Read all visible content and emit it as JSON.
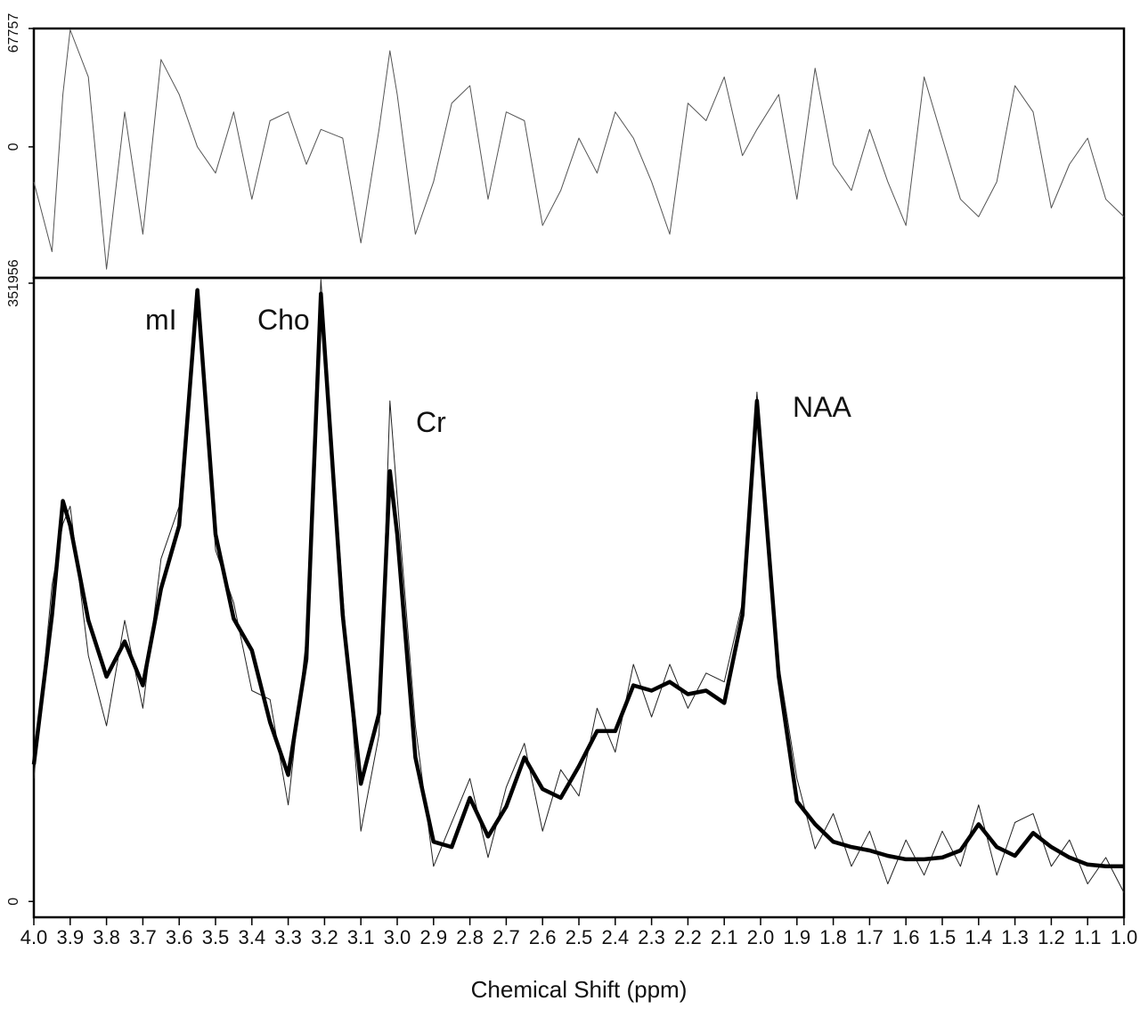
{
  "chart_data": [
    {
      "type": "line",
      "x": [
        4.0,
        3.95,
        3.92,
        3.9,
        3.85,
        3.8,
        3.75,
        3.7,
        3.65,
        3.6,
        3.55,
        3.5,
        3.45,
        3.4,
        3.35,
        3.3,
        3.25,
        3.21,
        3.15,
        3.1,
        3.05,
        3.02,
        3.0,
        2.95,
        2.9,
        2.85,
        2.8,
        2.75,
        2.7,
        2.65,
        2.6,
        2.55,
        2.5,
        2.45,
        2.4,
        2.35,
        2.3,
        2.25,
        2.2,
        2.15,
        2.1,
        2.05,
        2.01,
        1.95,
        1.9,
        1.85,
        1.8,
        1.75,
        1.7,
        1.65,
        1.6,
        1.55,
        1.5,
        1.45,
        1.4,
        1.35,
        1.3,
        1.25,
        1.2,
        1.15,
        1.1,
        1.05,
        1.0
      ],
      "series": [
        {
          "color": "#555555",
          "width": 1,
          "values": [
            -20000,
            -60000,
            30000,
            67000,
            40000,
            -70000,
            20000,
            -50000,
            50000,
            30000,
            0,
            -15000,
            20000,
            -30000,
            15000,
            20000,
            -10000,
            10000,
            5000,
            -55000,
            10000,
            55000,
            30000,
            -50000,
            -20000,
            25000,
            35000,
            -30000,
            20000,
            15000,
            -45000,
            -25000,
            5000,
            -15000,
            20000,
            5000,
            -20000,
            -50000,
            25000,
            15000,
            40000,
            -5000,
            10000,
            30000,
            -30000,
            45000,
            -10000,
            -25000,
            10000,
            -20000,
            -45000,
            40000,
            5000,
            -30000,
            -40000,
            -20000,
            35000,
            20000,
            -35000,
            -10000,
            5000,
            -30000,
            -40000
          ]
        }
      ],
      "xlim": [
        4,
        1
      ],
      "ylim": [
        -75000,
        67757
      ],
      "yticks": [
        0,
        67757
      ]
    },
    {
      "type": "line",
      "x": [
        4.0,
        3.95,
        3.92,
        3.9,
        3.85,
        3.8,
        3.75,
        3.7,
        3.65,
        3.6,
        3.55,
        3.5,
        3.45,
        3.4,
        3.35,
        3.3,
        3.25,
        3.21,
        3.15,
        3.1,
        3.05,
        3.02,
        3.0,
        2.95,
        2.9,
        2.85,
        2.8,
        2.75,
        2.7,
        2.65,
        2.6,
        2.55,
        2.5,
        2.45,
        2.4,
        2.35,
        2.3,
        2.25,
        2.2,
        2.15,
        2.1,
        2.05,
        2.01,
        1.95,
        1.9,
        1.85,
        1.8,
        1.75,
        1.7,
        1.65,
        1.6,
        1.55,
        1.5,
        1.45,
        1.4,
        1.35,
        1.3,
        1.25,
        1.2,
        1.15,
        1.1,
        1.05,
        1.0
      ],
      "series": [
        {
          "color": "#222222",
          "width": 1,
          "values": [
            70000,
            180000,
            215000,
            225000,
            140000,
            100000,
            160000,
            110000,
            195000,
            225000,
            345000,
            200000,
            170000,
            120000,
            115000,
            55000,
            150000,
            354000,
            175000,
            40000,
            95000,
            285000,
            230000,
            100000,
            20000,
            45000,
            70000,
            25000,
            65000,
            90000,
            40000,
            75000,
            60000,
            110000,
            85000,
            135000,
            105000,
            135000,
            110000,
            130000,
            125000,
            170000,
            290000,
            135000,
            70000,
            30000,
            50000,
            20000,
            40000,
            10000,
            35000,
            15000,
            40000,
            20000,
            55000,
            15000,
            45000,
            50000,
            20000,
            35000,
            10000,
            25000,
            5000
          ]
        },
        {
          "color": "#000000",
          "width": 4.5,
          "values": [
            78000,
            163000,
            228000,
            214000,
            160000,
            128000,
            148000,
            123000,
            178000,
            214000,
            348000,
            209000,
            161000,
            143000,
            102000,
            72000,
            138000,
            346000,
            163000,
            67000,
            107000,
            245000,
            209000,
            82000,
            34000,
            31000,
            59000,
            37000,
            54000,
            82000,
            64000,
            59000,
            77000,
            97000,
            97000,
            123000,
            120000,
            125000,
            118000,
            120000,
            113000,
            163000,
            285000,
            128000,
            57000,
            44000,
            34000,
            31000,
            29000,
            26000,
            24000,
            24000,
            25000,
            29000,
            44000,
            31000,
            26000,
            39000,
            31000,
            25000,
            21000,
            20000,
            20000
          ]
        }
      ],
      "xlim": [
        4,
        1
      ],
      "ylim": [
        -9000,
        355000
      ],
      "yticks": [
        0,
        351956
      ],
      "xticks": [
        {
          "value": 4,
          "label": "4.0"
        },
        3.9,
        3.8,
        3.7,
        3.6,
        3.5,
        3.4,
        3.3,
        3.2,
        3.1,
        {
          "value": 3,
          "label": "3.0"
        },
        2.9,
        2.8,
        2.7,
        2.6,
        2.5,
        2.4,
        2.3,
        2.2,
        2.1,
        {
          "value": 2,
          "label": "2.0"
        },
        1.9,
        1.8,
        1.7,
        1.6,
        1.5,
        1.4,
        1.3,
        1.2,
        1.1,
        {
          "value": 1,
          "label": "1.0"
        }
      ],
      "x_label": "Chemical Shift (ppm)",
      "annotations": [
        "mI",
        "Cho",
        "Cr",
        "NAA"
      ]
    }
  ]
}
